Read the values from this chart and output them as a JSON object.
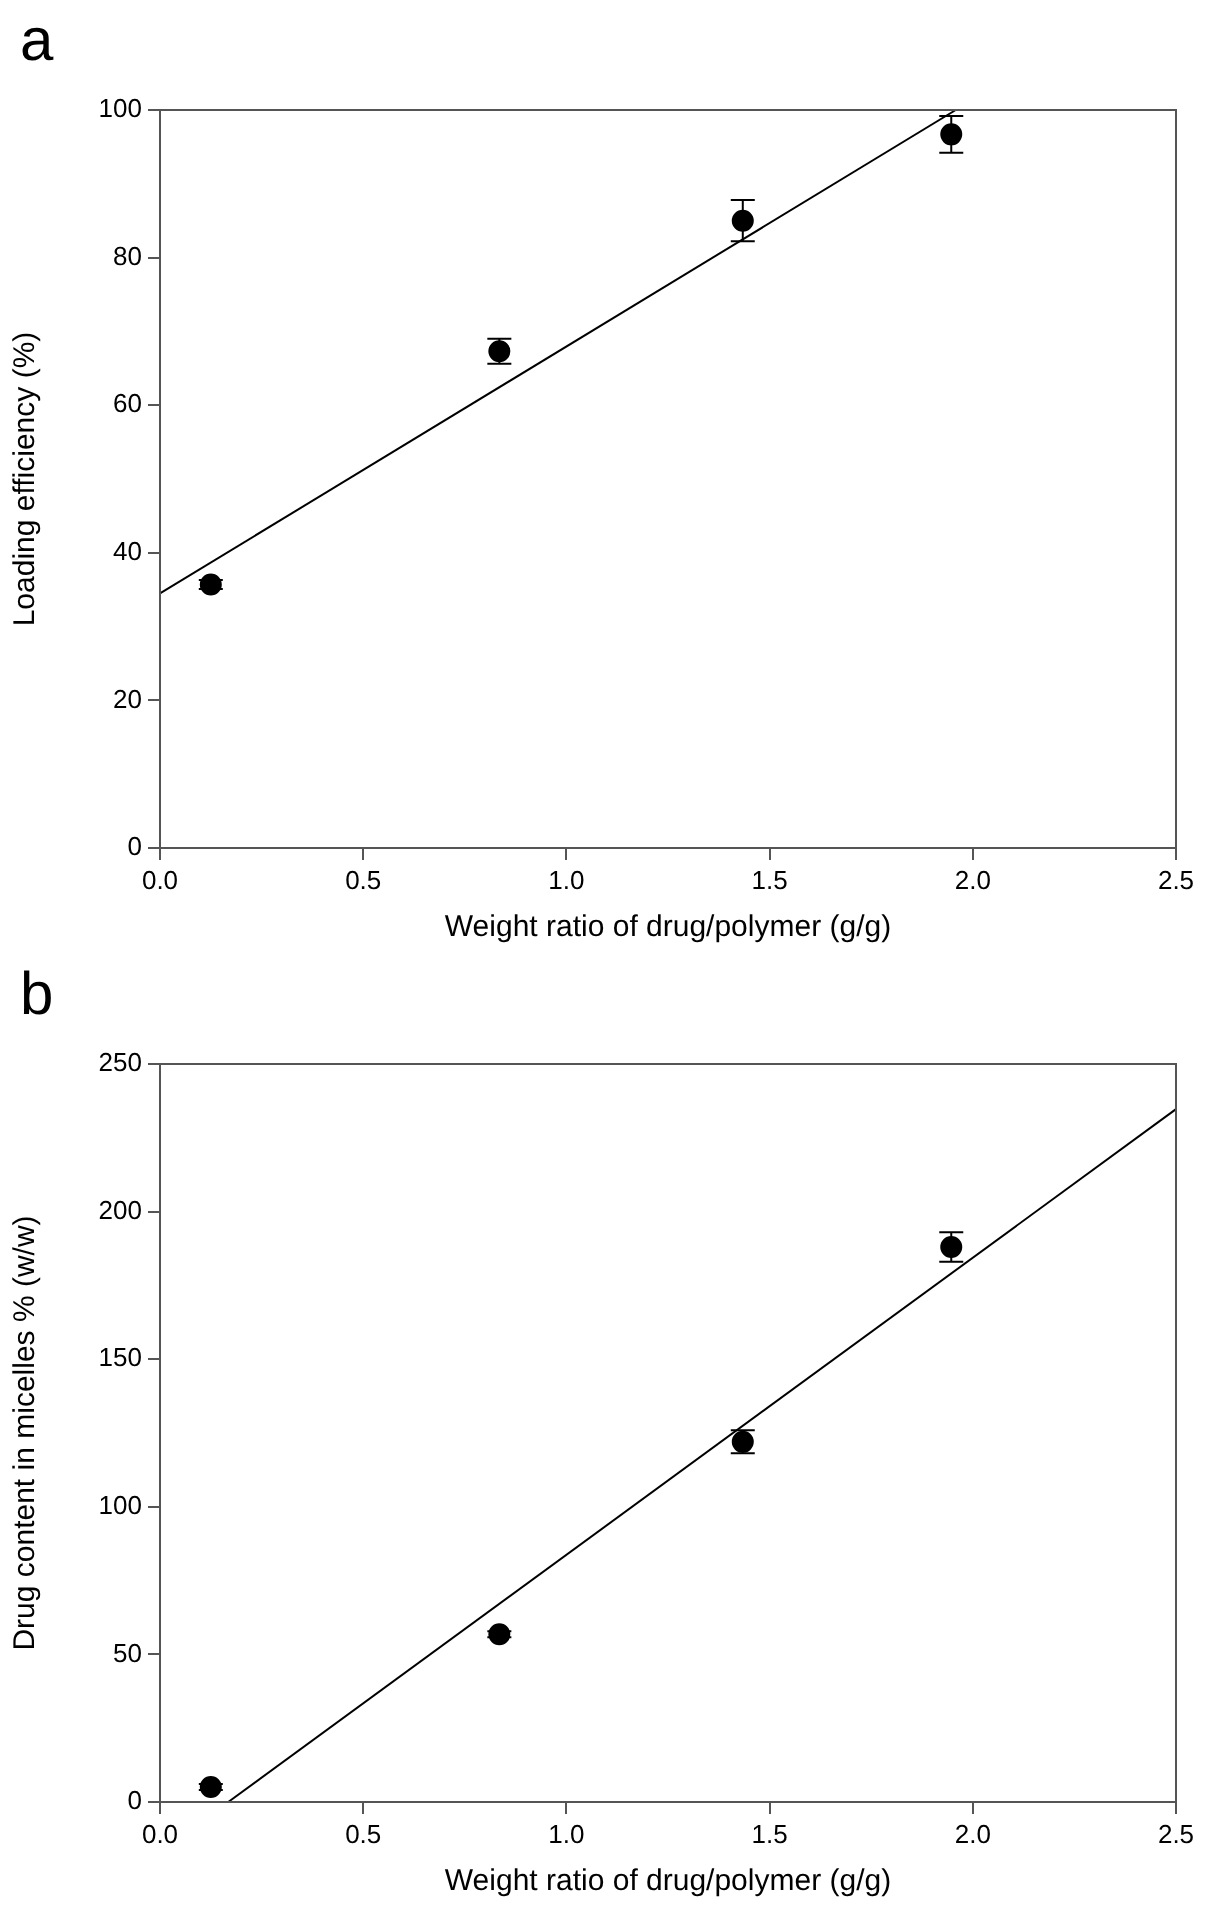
{
  "chart_data": [
    {
      "type": "scatter",
      "title": "a",
      "xlabel": "Weight ratio of drug/polymer (g/g)",
      "ylabel": "Loading efficiency (%)",
      "xlim": [
        0,
        2.5
      ],
      "ylim": [
        0,
        100
      ],
      "xticks": [
        {
          "value": 0,
          "label": "0.0"
        },
        {
          "value": 0.5,
          "label": "0.5"
        },
        {
          "value": 1,
          "label": "1.0"
        },
        {
          "value": 1.5,
          "label": "1.5"
        },
        {
          "value": 2,
          "label": "2.0"
        },
        {
          "value": 2.5,
          "label": "2.5"
        }
      ],
      "yticks": [
        0,
        20,
        40,
        60,
        80,
        100
      ],
      "grid": false,
      "legend": false,
      "series": [
        {
          "color": "#000000",
          "marker": "circle",
          "x": [
            0.125,
            0.835,
            1.434,
            1.947
          ],
          "values": [
            35.7,
            67.3,
            85.0,
            96.7
          ],
          "errors": [
            0.6,
            1.7,
            2.8,
            2.5
          ]
        },
        {
          "type": "line",
          "marker": "none",
          "color": "#000000",
          "x": [
            0,
            1.958
          ],
          "values": [
            34.5,
            100
          ]
        }
      ]
    },
    {
      "type": "scatter",
      "title": "b",
      "xlabel": "Weight ratio of drug/polymer (g/g)",
      "ylabel": "Drug content in micelles % (w/w)",
      "xlim": [
        0,
        2.5
      ],
      "ylim": [
        0,
        250
      ],
      "xticks": [
        {
          "value": 0,
          "label": "0.0"
        },
        {
          "value": 0.5,
          "label": "0.5"
        },
        {
          "value": 1,
          "label": "1.0"
        },
        {
          "value": 1.5,
          "label": "1.5"
        },
        {
          "value": 2,
          "label": "2.0"
        },
        {
          "value": 2.5,
          "label": "2.5"
        }
      ],
      "yticks": [
        0,
        50,
        100,
        150,
        200,
        250
      ],
      "grid": false,
      "legend": false,
      "series": [
        {
          "color": "#000000",
          "marker": "circle",
          "x": [
            0.125,
            0.835,
            1.434,
            1.947
          ],
          "values": [
            5.1,
            56.8,
            122.0,
            188.0
          ],
          "errors": [
            1,
            1,
            3.9,
            5
          ]
        },
        {
          "type": "line",
          "marker": "none",
          "color": "#000000",
          "x": [
            0.168,
            2.5
          ],
          "values": [
            0,
            234.7
          ]
        }
      ]
    }
  ]
}
